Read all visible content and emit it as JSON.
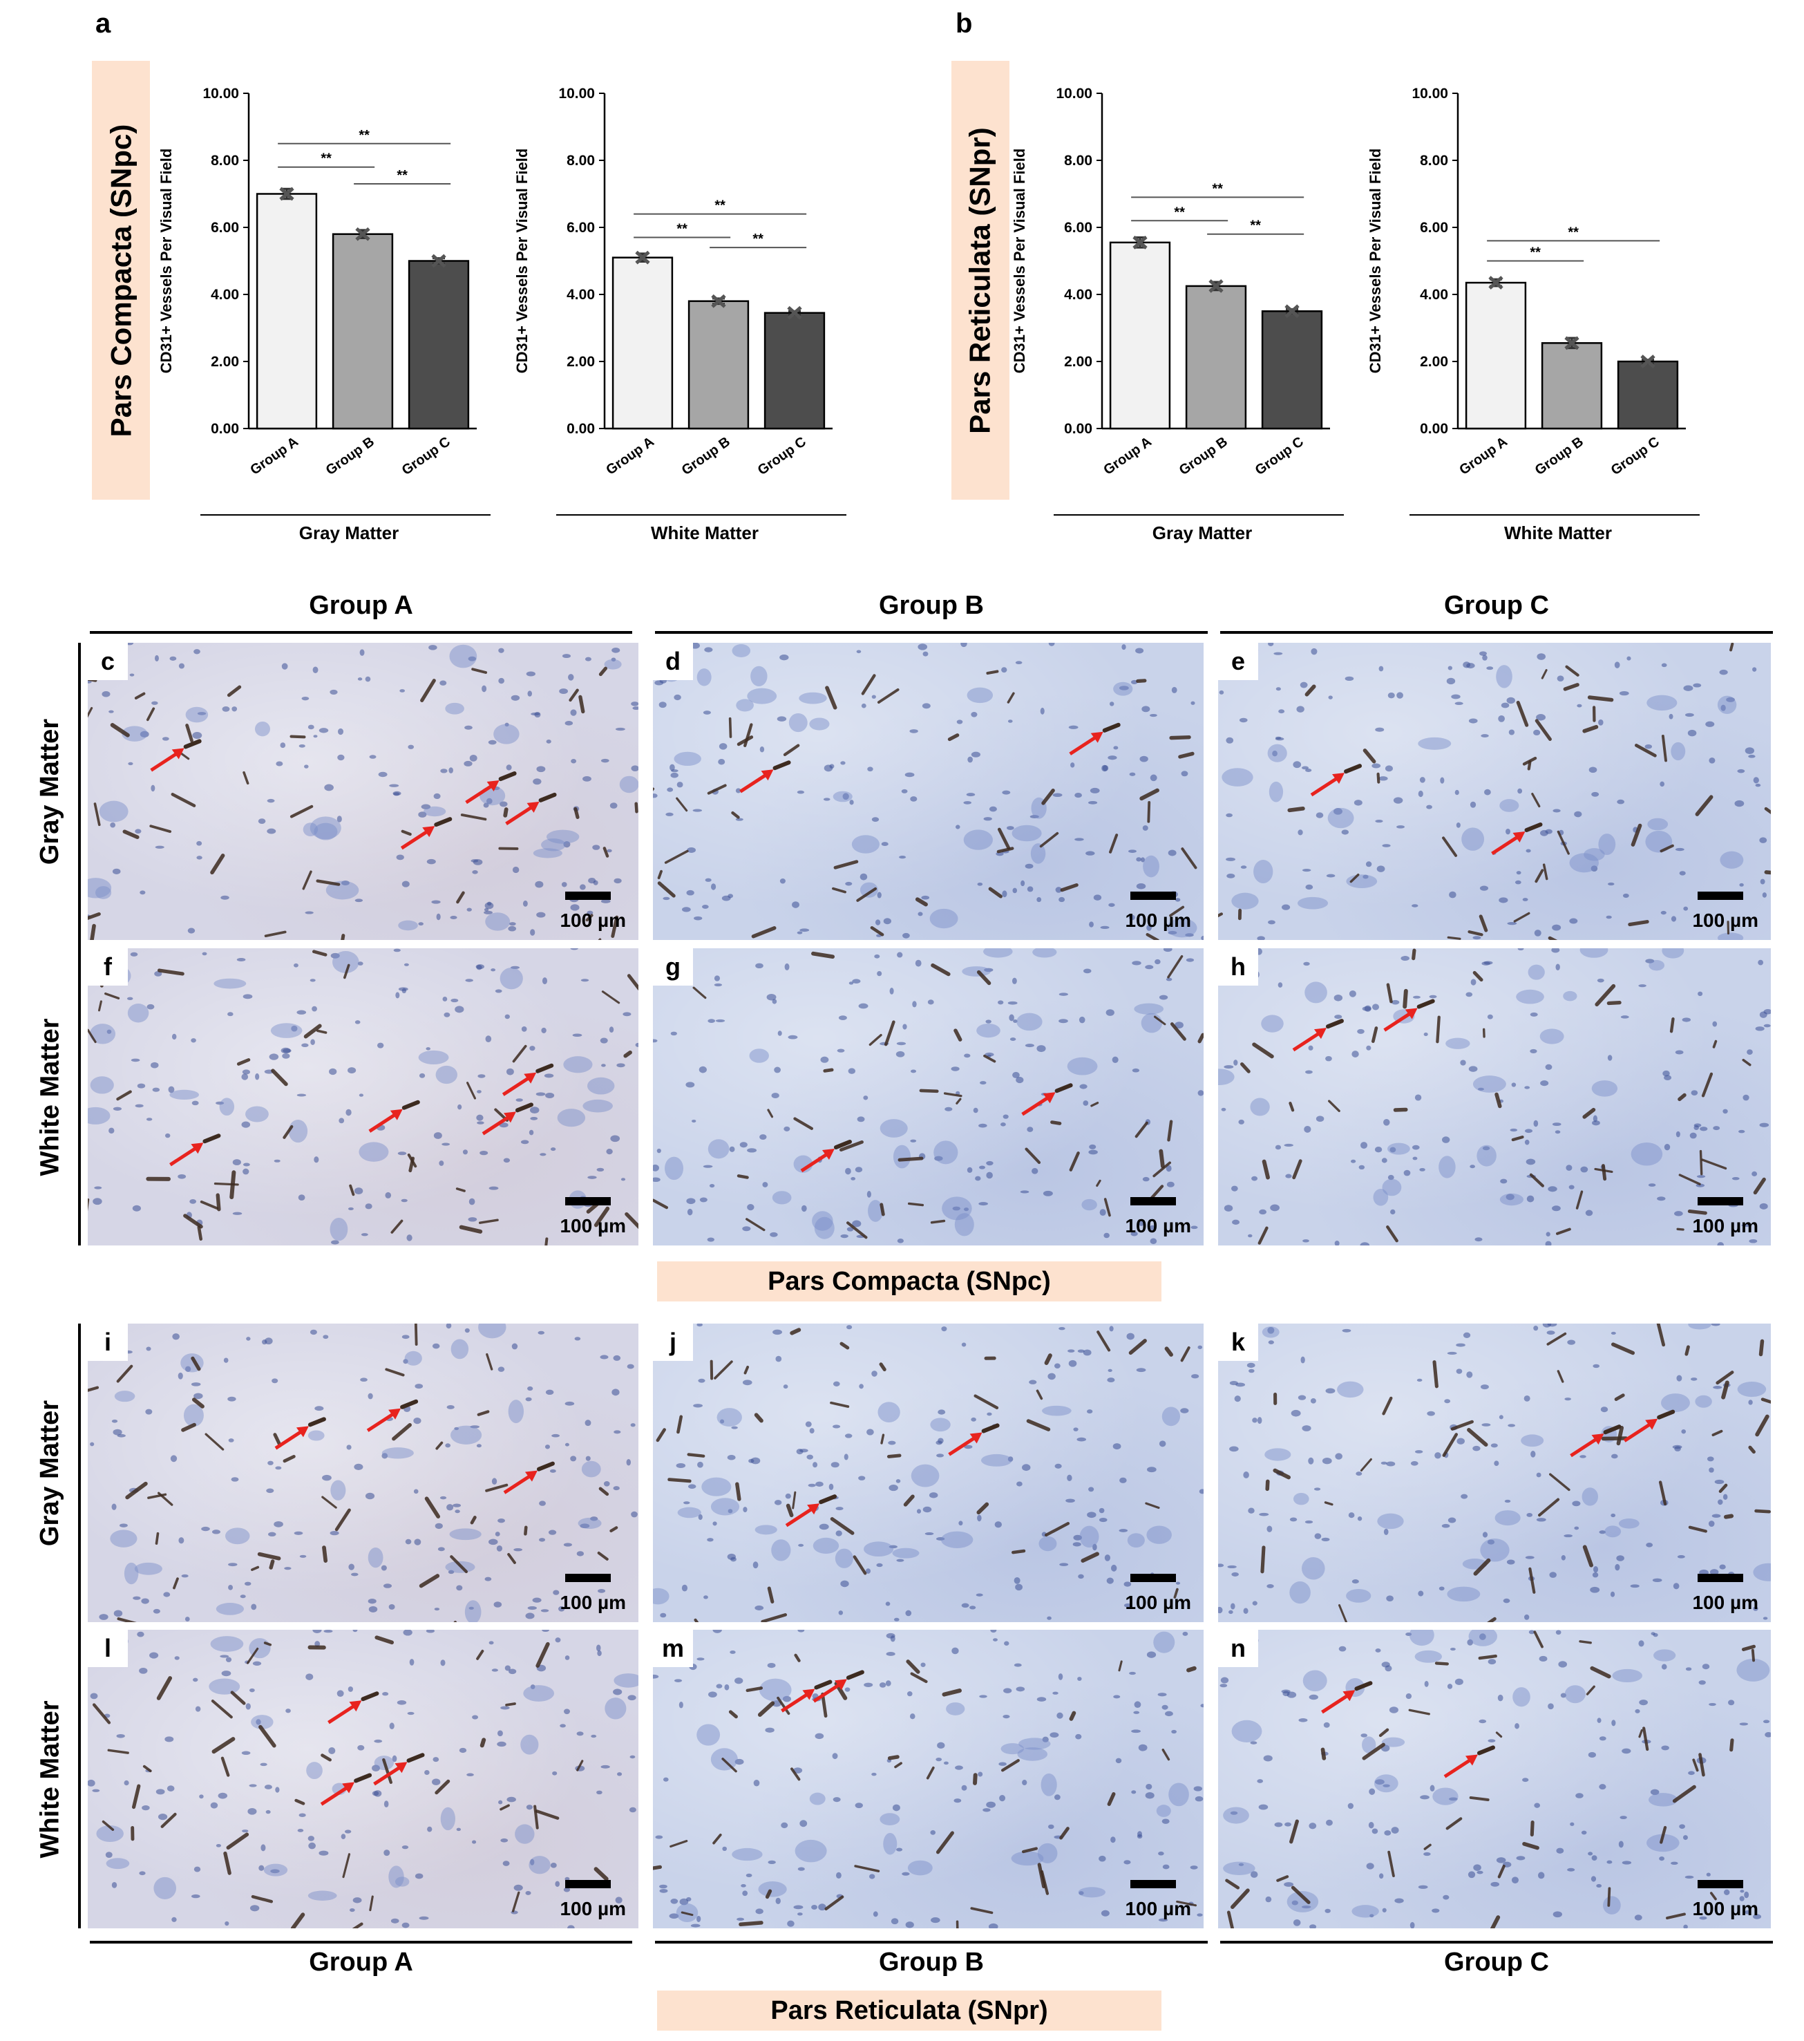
{
  "panel_letters": {
    "a": "a",
    "b": "b"
  },
  "sections": {
    "compacta_vertical": "Pars Compacta (SNpc)",
    "reticulata_vertical": "Pars Reticulata (SNpr)",
    "compacta_horizontal": "Pars Compacta (SNpc)",
    "reticulata_horizontal": "Pars Reticulata (SNpr)"
  },
  "colors": {
    "group_a": "#f2f2f2",
    "group_b": "#a6a6a6",
    "group_c": "#4d4d4d",
    "section_band": "#fde2cf",
    "arrow": "#e8231e",
    "tissue": "#c9d3ea",
    "stain": "#3d2b20"
  },
  "chart_data": [
    {
      "type": "bar",
      "panel": "a",
      "categories": [
        "Group A",
        "Group B",
        "Group C"
      ],
      "values": [
        7.0,
        5.8,
        5.0
      ],
      "errors": [
        0.15,
        0.12,
        0.08
      ],
      "xlabel": "Gray Matter",
      "ylabel": "CD31+ Vessels Per Visual Field",
      "ylim": [
        0,
        10
      ],
      "yticks": [
        "0.00",
        "2.00",
        "4.00",
        "6.00",
        "8.00",
        "10.00"
      ],
      "significance": [
        {
          "from": 0,
          "to": 1,
          "label": "**",
          "y": 7.8
        },
        {
          "from": 1,
          "to": 2,
          "label": "**",
          "y": 7.3
        },
        {
          "from": 0,
          "to": 2,
          "label": "**",
          "y": 8.5
        }
      ]
    },
    {
      "type": "bar",
      "panel": "a",
      "categories": [
        "Group A",
        "Group B",
        "Group C"
      ],
      "values": [
        5.1,
        3.8,
        3.45
      ],
      "errors": [
        0.12,
        0.08,
        0.05
      ],
      "xlabel": "White Matter",
      "ylabel": "CD31+ Vessels Per Visual Field",
      "ylim": [
        0,
        10
      ],
      "yticks": [
        "0.00",
        "2.00",
        "4.00",
        "6.00",
        "8.00",
        "10.00"
      ],
      "significance": [
        {
          "from": 0,
          "to": 1,
          "label": "**",
          "y": 5.7
        },
        {
          "from": 1,
          "to": 2,
          "label": "**",
          "y": 5.4
        },
        {
          "from": 0,
          "to": 2,
          "label": "**",
          "y": 6.4
        }
      ]
    },
    {
      "type": "bar",
      "panel": "b",
      "categories": [
        "Group A",
        "Group B",
        "Group C"
      ],
      "values": [
        5.55,
        4.25,
        3.5
      ],
      "errors": [
        0.15,
        0.12,
        0.06
      ],
      "xlabel": "Gray Matter",
      "ylabel": "CD31+ Vessels Per Visual Field",
      "ylim": [
        0,
        10
      ],
      "yticks": [
        "0.00",
        "2.00",
        "4.00",
        "6.00",
        "8.00",
        "10.00"
      ],
      "significance": [
        {
          "from": 0,
          "to": 1,
          "label": "**",
          "y": 6.2
        },
        {
          "from": 1,
          "to": 2,
          "label": "**",
          "y": 5.8
        },
        {
          "from": 0,
          "to": 2,
          "label": "**",
          "y": 6.9
        }
      ]
    },
    {
      "type": "bar",
      "panel": "b",
      "categories": [
        "Group A",
        "Group B",
        "Group C"
      ],
      "values": [
        4.35,
        2.55,
        2.0
      ],
      "errors": [
        0.1,
        0.15,
        0.05
      ],
      "xlabel": "White Matter",
      "ylabel": "CD31+ Vessels Per Visual Field",
      "ylim": [
        0,
        10
      ],
      "yticks": [
        "0.00",
        "2.00",
        "4.00",
        "6.00",
        "8.00",
        "10.00"
      ],
      "significance": [
        {
          "from": 0,
          "to": 1,
          "label": "**",
          "y": 5.0
        },
        {
          "from": 0,
          "to": 2,
          "label": "**",
          "y": 5.6
        }
      ]
    }
  ],
  "grid": {
    "column_headers": [
      "Group A",
      "Group B",
      "Group C"
    ],
    "row_headers": [
      "Gray Matter",
      "White Matter"
    ],
    "scale_label": "100 µm",
    "panels": [
      {
        "letter": "c",
        "arrows": 4
      },
      {
        "letter": "d",
        "arrows": 2
      },
      {
        "letter": "e",
        "arrows": 2
      },
      {
        "letter": "f",
        "arrows": 4
      },
      {
        "letter": "g",
        "arrows": 2
      },
      {
        "letter": "h",
        "arrows": 2
      },
      {
        "letter": "i",
        "arrows": 3
      },
      {
        "letter": "j",
        "arrows": 2
      },
      {
        "letter": "k",
        "arrows": 2
      },
      {
        "letter": "l",
        "arrows": 3
      },
      {
        "letter": "m",
        "arrows": 2
      },
      {
        "letter": "n",
        "arrows": 2
      }
    ]
  }
}
